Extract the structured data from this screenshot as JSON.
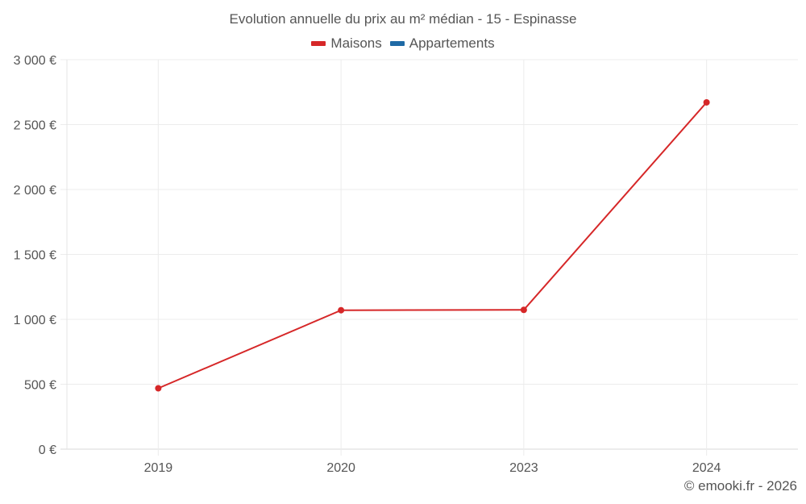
{
  "chart_data": {
    "type": "line",
    "title": "Evolution annuelle du prix au m² médian - 15 - Espinasse",
    "categories": [
      "2019",
      "2020",
      "2023",
      "2024"
    ],
    "series": [
      {
        "name": "Maisons",
        "color": "#d62728",
        "values": [
          469,
          1070,
          1073,
          2671
        ]
      },
      {
        "name": "Appartements",
        "color": "#1f6aa5",
        "values": []
      }
    ],
    "xlabel": "",
    "ylabel": "",
    "ylim": [
      0,
      3000
    ],
    "yticks": [
      0,
      500,
      1000,
      1500,
      2000,
      2500,
      3000
    ],
    "ytick_labels": [
      "0 €",
      "500 €",
      "1 000 €",
      "1 500 €",
      "2 000 €",
      "2 500 €",
      "3 000 €"
    ],
    "grid": true,
    "legend_position": "top"
  },
  "header": {
    "title": "Evolution annuelle du prix au m² médian - 15 - Espinasse"
  },
  "legend": {
    "items": [
      {
        "label": "Maisons",
        "color": "#d62728"
      },
      {
        "label": "Appartements",
        "color": "#1f6aa5"
      }
    ]
  },
  "footer": {
    "credit": "© emooki.fr - 2026"
  }
}
